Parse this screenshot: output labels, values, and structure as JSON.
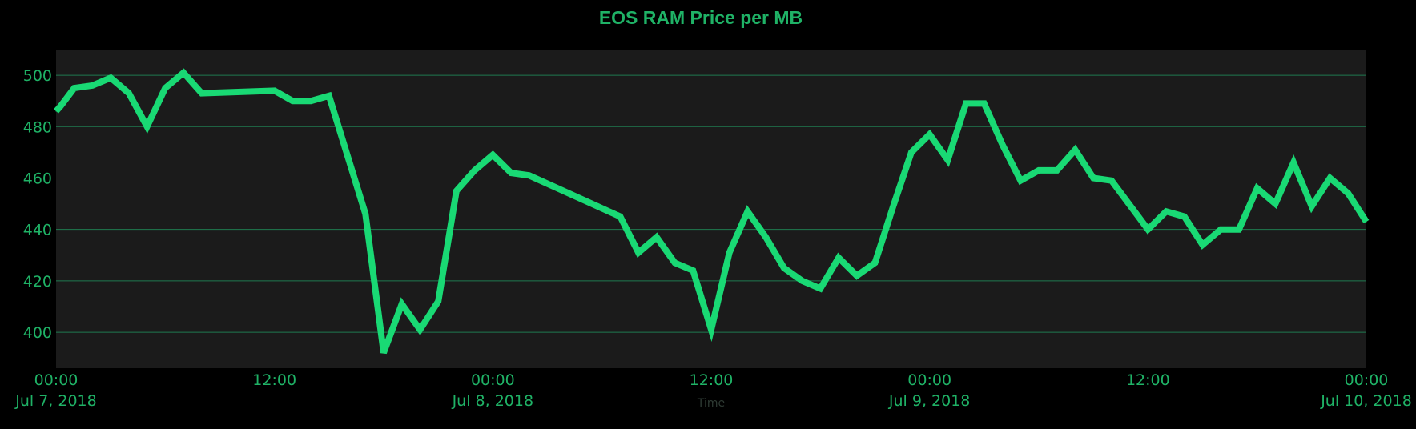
{
  "colors": {
    "background": "#000000",
    "plot_background": "#1b1b1b",
    "line": "#19d974",
    "text": "#1fb266",
    "grid": "#1f7a4f",
    "axis_title": "#2e3a33"
  },
  "chart_data": {
    "type": "line",
    "title": "EOS RAM Price per MB",
    "xlabel": "Time",
    "ylabel": "",
    "grid": "horizontal",
    "x_range": [
      "2018-07-07 00:00",
      "2018-07-10 00:00"
    ],
    "ylim": [
      386,
      510
    ],
    "y_ticks": [
      400,
      420,
      440,
      460,
      480,
      500
    ],
    "x_ticks": [
      {
        "time": "2018-07-07 00:00",
        "label": "00:00",
        "sublabel": "Jul 7, 2018"
      },
      {
        "time": "2018-07-07 12:00",
        "label": "12:00",
        "sublabel": ""
      },
      {
        "time": "2018-07-08 00:00",
        "label": "00:00",
        "sublabel": "Jul 8, 2018"
      },
      {
        "time": "2018-07-08 12:00",
        "label": "12:00",
        "sublabel": ""
      },
      {
        "time": "2018-07-09 00:00",
        "label": "00:00",
        "sublabel": "Jul 9, 2018"
      },
      {
        "time": "2018-07-09 12:00",
        "label": "12:00",
        "sublabel": ""
      },
      {
        "time": "2018-07-10 00:00",
        "label": "00:00",
        "sublabel": "Jul 10, 2018"
      }
    ],
    "series": [
      {
        "x": [
          "2018-07-07 00:00",
          "2018-07-07 00:15",
          "2018-07-07 01:00",
          "2018-07-07 02:00",
          "2018-07-07 03:00",
          "2018-07-07 04:00",
          "2018-07-07 05:00",
          "2018-07-07 06:00",
          "2018-07-07 07:00",
          "2018-07-07 08:00",
          "2018-07-07 12:00",
          "2018-07-07 13:00",
          "2018-07-07 14:00",
          "2018-07-07 15:00",
          "2018-07-07 17:00",
          "2018-07-07 18:00",
          "2018-07-07 19:00",
          "2018-07-07 20:00",
          "2018-07-07 21:00",
          "2018-07-07 22:00",
          "2018-07-07 23:00",
          "2018-07-08 00:00",
          "2018-07-08 01:00",
          "2018-07-08 02:00",
          "2018-07-08 07:00",
          "2018-07-08 08:00",
          "2018-07-08 09:00",
          "2018-07-08 10:00",
          "2018-07-08 11:00",
          "2018-07-08 12:00",
          "2018-07-08 13:00",
          "2018-07-08 14:00",
          "2018-07-08 15:00",
          "2018-07-08 16:00",
          "2018-07-08 17:00",
          "2018-07-08 18:00",
          "2018-07-08 19:00",
          "2018-07-08 20:00",
          "2018-07-08 21:00",
          "2018-07-08 22:00",
          "2018-07-08 23:00",
          "2018-07-09 00:00",
          "2018-07-09 01:00",
          "2018-07-09 02:00",
          "2018-07-09 03:00",
          "2018-07-09 04:00",
          "2018-07-09 05:00",
          "2018-07-09 06:00",
          "2018-07-09 07:00",
          "2018-07-09 08:00",
          "2018-07-09 09:00",
          "2018-07-09 10:00",
          "2018-07-09 12:00",
          "2018-07-09 13:00",
          "2018-07-09 14:00",
          "2018-07-09 15:00",
          "2018-07-09 16:00",
          "2018-07-09 17:00",
          "2018-07-09 18:00",
          "2018-07-09 19:00",
          "2018-07-09 20:00",
          "2018-07-09 21:00",
          "2018-07-09 22:00",
          "2018-07-09 23:00",
          "2018-07-10 00:00"
        ],
        "values": [
          486,
          488,
          495,
          496,
          499,
          493,
          480,
          495,
          501,
          493,
          494,
          490,
          490,
          492,
          446,
          392,
          411,
          401,
          412,
          455,
          463,
          469,
          462,
          461,
          445,
          431,
          437,
          427,
          424,
          401,
          431,
          447,
          437,
          425,
          420,
          417,
          429,
          422,
          427,
          449,
          470,
          477,
          467,
          489,
          489,
          473,
          459,
          463,
          463,
          471,
          460,
          459,
          440,
          447,
          445,
          434,
          440,
          440,
          456,
          450,
          466,
          449,
          460,
          454,
          443
        ]
      }
    ]
  }
}
